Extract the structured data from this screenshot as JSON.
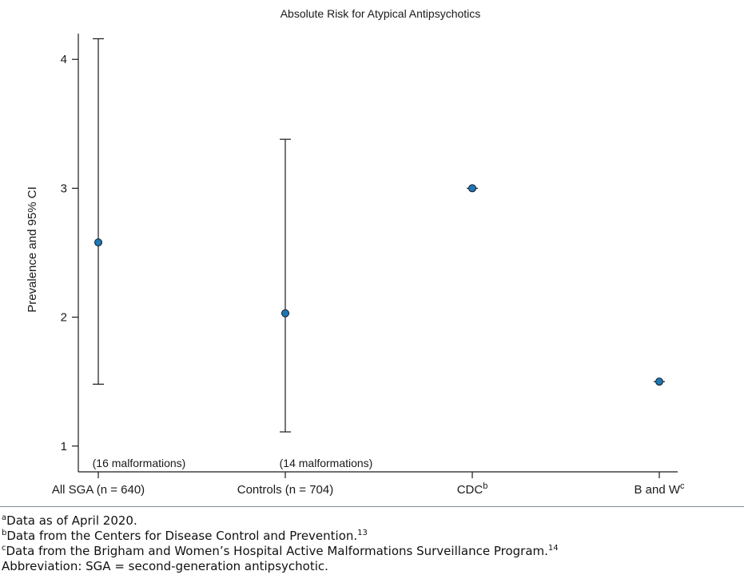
{
  "chart_data": {
    "type": "scatter",
    "title": "Absolute Risk for Atypical Antipsychotics",
    "ylabel": "Prevalence and 95% CI",
    "xlabel": "",
    "ylim": [
      0.8,
      4.2
    ],
    "yticks": [
      1,
      2,
      3,
      4
    ],
    "grid": false,
    "categories": [
      {
        "label": "All SGA (n = 640)",
        "sup": ""
      },
      {
        "label": "Controls (n = 704)",
        "sup": ""
      },
      {
        "label": "CDC",
        "sup": "b"
      },
      {
        "label": "B and W",
        "sup": "c"
      }
    ],
    "points": [
      {
        "category": "All SGA (n = 640)",
        "value": 2.58,
        "ci_low": 1.48,
        "ci_high": 4.16,
        "annotation": "(16 malformations)"
      },
      {
        "category": "Controls (n = 704)",
        "value": 2.03,
        "ci_low": 1.11,
        "ci_high": 3.38,
        "annotation": "(14 malformations)"
      },
      {
        "category": "CDC",
        "value": 3.0,
        "ci_low": 3.0,
        "ci_high": 3.0,
        "annotation": ""
      },
      {
        "category": "B and W",
        "value": 1.5,
        "ci_low": 1.5,
        "ci_high": 1.5,
        "annotation": ""
      }
    ],
    "colors": {
      "marker": "#1f77b4",
      "marker_edge": "#0d1b2a",
      "line": "#1a1a1a"
    }
  },
  "footnotes": [
    {
      "sup": "a",
      "text": "Data as of April 2020.",
      "ref": ""
    },
    {
      "sup": "b",
      "text": "Data from the Centers for Disease Control and Prevention.",
      "ref": "13"
    },
    {
      "sup": "c",
      "text": "Data from the Brigham and Women’s Hospital Active Malformations Surveillance Program.",
      "ref": "14"
    },
    {
      "sup": "",
      "text": "Abbreviation: SGA = second-generation antipsychotic.",
      "ref": ""
    }
  ]
}
